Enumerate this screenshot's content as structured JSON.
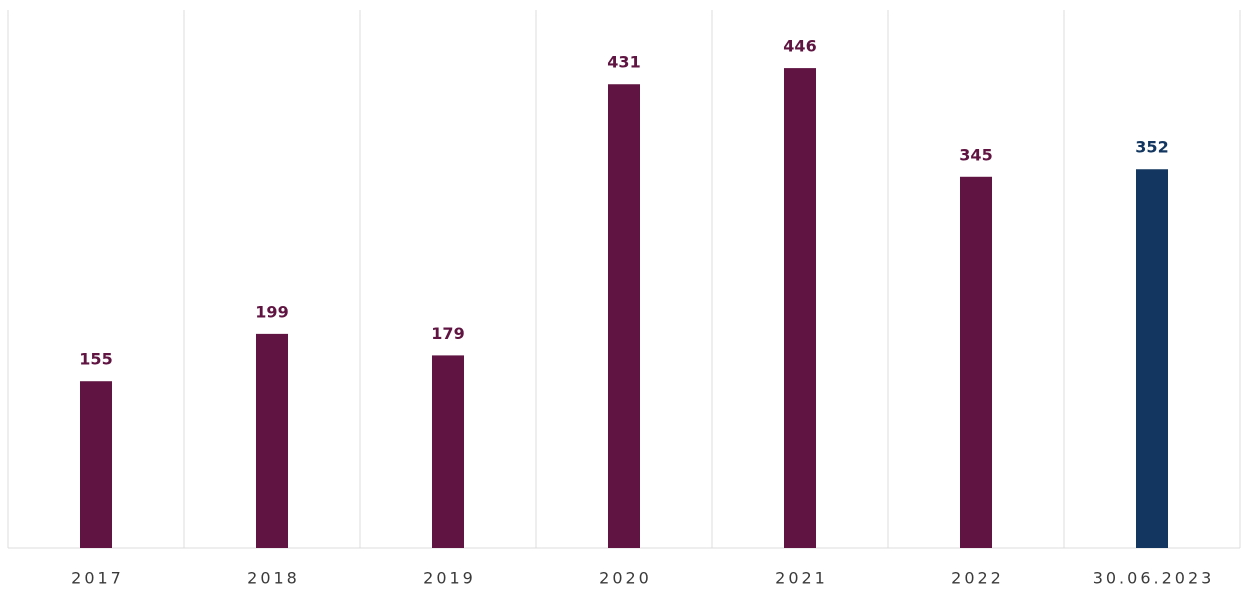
{
  "chart_data": {
    "type": "bar",
    "categories": [
      "2017",
      "2018",
      "2019",
      "2020",
      "2021",
      "2022",
      "30.06.2023"
    ],
    "values": [
      155,
      199,
      179,
      431,
      446,
      345,
      352
    ],
    "colors": [
      "#5f1441",
      "#5f1441",
      "#5f1441",
      "#5f1441",
      "#5f1441",
      "#5f1441",
      "#12365f"
    ],
    "ylim": [
      0,
      500
    ]
  }
}
